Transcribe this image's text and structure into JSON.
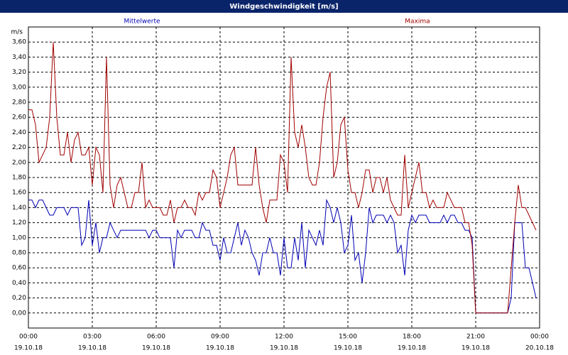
{
  "chart_data": {
    "type": "line",
    "title": "Windgeschwindigkeit [m/s]",
    "y_unit": "m/s",
    "xlim": [
      0,
      1440
    ],
    "xticks": [
      {
        "value": 0,
        "label": "00:00"
      },
      {
        "value": 180,
        "label": "03:00"
      },
      {
        "value": 360,
        "label": "06:00"
      },
      {
        "value": 540,
        "label": "09:00"
      },
      {
        "value": 720,
        "label": "12:00"
      },
      {
        "value": 900,
        "label": "15:00"
      },
      {
        "value": 1080,
        "label": "18:00"
      },
      {
        "value": 1260,
        "label": "21:00"
      },
      {
        "value": 1440,
        "label": "00:00"
      }
    ],
    "xtick_dates": [
      "19.10.18",
      "19.10.18",
      "19.10.18",
      "19.10.18",
      "19.10.18",
      "19.10.18",
      "19.10.18",
      "19.10.18",
      "20.10.18"
    ],
    "ylim": [
      -0.2,
      3.8
    ],
    "yticks": [
      {
        "value": 0,
        "label": "0,00"
      },
      {
        "value": 0.2,
        "label": "0,20"
      },
      {
        "value": 0.4,
        "label": "0,40"
      },
      {
        "value": 0.6,
        "label": "0,60"
      },
      {
        "value": 0.8,
        "label": "0,80"
      },
      {
        "value": 1,
        "label": "1,00"
      },
      {
        "value": 1.2,
        "label": "1,20"
      },
      {
        "value": 1.4,
        "label": "1,40"
      },
      {
        "value": 1.6,
        "label": "1,60"
      },
      {
        "value": 1.8,
        "label": "1,80"
      },
      {
        "value": 2,
        "label": "2,00"
      },
      {
        "value": 2.2,
        "label": "2,20"
      },
      {
        "value": 2.4,
        "label": "2,40"
      },
      {
        "value": 2.6,
        "label": "2,60"
      },
      {
        "value": 2.8,
        "label": "2,80"
      },
      {
        "value": 3,
        "label": "3,00"
      },
      {
        "value": 3.2,
        "label": "3,20"
      },
      {
        "value": 3.4,
        "label": "3,40"
      },
      {
        "value": 3.6,
        "label": "3,60"
      }
    ],
    "grid": true,
    "x": [
      0,
      10,
      20,
      30,
      40,
      50,
      60,
      70,
      80,
      90,
      100,
      110,
      120,
      130,
      140,
      150,
      160,
      170,
      180,
      190,
      200,
      210,
      220,
      230,
      240,
      250,
      260,
      270,
      280,
      290,
      300,
      310,
      320,
      330,
      340,
      350,
      360,
      370,
      380,
      390,
      400,
      410,
      420,
      430,
      440,
      450,
      460,
      470,
      480,
      490,
      500,
      510,
      520,
      530,
      540,
      550,
      560,
      570,
      580,
      590,
      600,
      610,
      620,
      630,
      640,
      650,
      660,
      670,
      680,
      690,
      700,
      710,
      720,
      730,
      740,
      750,
      760,
      770,
      780,
      790,
      800,
      810,
      820,
      830,
      840,
      850,
      860,
      870,
      880,
      890,
      900,
      910,
      920,
      930,
      940,
      950,
      960,
      970,
      980,
      990,
      1000,
      1010,
      1020,
      1030,
      1040,
      1050,
      1060,
      1070,
      1080,
      1090,
      1100,
      1110,
      1120,
      1130,
      1140,
      1150,
      1160,
      1170,
      1180,
      1190,
      1200,
      1210,
      1220,
      1230,
      1240,
      1250,
      1260,
      1270,
      1280,
      1290,
      1300,
      1310,
      1320,
      1330,
      1340,
      1350,
      1360,
      1370,
      1380,
      1390,
      1400,
      1410,
      1420,
      1430
    ],
    "series": [
      {
        "name": "Mittelwerte",
        "color": "#0000b4",
        "values": [
          1.5,
          1.5,
          1.4,
          1.5,
          1.5,
          1.4,
          1.3,
          1.3,
          1.4,
          1.4,
          1.4,
          1.3,
          1.4,
          1.4,
          1.4,
          0.9,
          1.0,
          1.5,
          0.9,
          1.2,
          0.8,
          1.0,
          1.0,
          1.2,
          1.1,
          1.0,
          1.1,
          1.1,
          1.1,
          1.1,
          1.1,
          1.1,
          1.1,
          1.1,
          1.0,
          1.1,
          1.1,
          1.0,
          1.0,
          1.0,
          1.0,
          0.6,
          1.1,
          1.0,
          1.1,
          1.1,
          1.1,
          1.0,
          1.0,
          1.2,
          1.1,
          1.1,
          0.9,
          0.9,
          0.7,
          1.0,
          0.8,
          0.8,
          1.0,
          1.2,
          0.9,
          1.1,
          1.0,
          0.8,
          0.7,
          0.5,
          0.8,
          0.8,
          1.0,
          0.8,
          0.8,
          0.5,
          1.0,
          0.6,
          0.6,
          1.0,
          0.7,
          1.2,
          0.6,
          1.1,
          1.0,
          0.9,
          1.1,
          0.9,
          1.5,
          1.4,
          1.2,
          1.4,
          1.2,
          0.8,
          0.9,
          1.3,
          0.7,
          0.8,
          0.4,
          0.8,
          1.4,
          1.2,
          1.3,
          1.3,
          1.3,
          1.2,
          1.3,
          1.2,
          0.8,
          0.9,
          0.5,
          1.1,
          1.3,
          1.2,
          1.3,
          1.3,
          1.3,
          1.2,
          1.2,
          1.2,
          1.2,
          1.3,
          1.2,
          1.3,
          1.3,
          1.2,
          1.2,
          1.1,
          1.1,
          1.0,
          0,
          0,
          0,
          0,
          0,
          0,
          0,
          0,
          0,
          0,
          0.2,
          1.2,
          1.2,
          1.2,
          0.6,
          0.6,
          0.4,
          0.2
        ]
      },
      {
        "name": "Maxima",
        "color": "#a00000",
        "values": [
          2.7,
          2.7,
          2.5,
          2.0,
          2.1,
          2.2,
          2.6,
          3.6,
          2.6,
          2.1,
          2.1,
          2.4,
          2.0,
          2.3,
          2.4,
          2.1,
          2.1,
          2.2,
          1.7,
          2.2,
          2.1,
          1.6,
          3.4,
          1.7,
          1.4,
          1.7,
          1.8,
          1.6,
          1.4,
          1.4,
          1.6,
          1.6,
          2.0,
          1.4,
          1.5,
          1.4,
          1.4,
          1.4,
          1.3,
          1.3,
          1.5,
          1.2,
          1.4,
          1.4,
          1.5,
          1.4,
          1.4,
          1.3,
          1.6,
          1.5,
          1.6,
          1.6,
          1.9,
          1.8,
          1.4,
          1.6,
          1.8,
          2.1,
          2.2,
          1.7,
          1.7,
          1.7,
          1.7,
          1.7,
          2.2,
          1.7,
          1.4,
          1.2,
          1.5,
          1.5,
          1.5,
          2.1,
          2.0,
          1.6,
          3.4,
          2.4,
          2.2,
          2.5,
          2.2,
          1.8,
          1.7,
          1.7,
          2.0,
          2.6,
          3.0,
          3.2,
          1.8,
          2.0,
          2.5,
          2.6,
          1.9,
          1.6,
          1.6,
          1.4,
          1.6,
          1.9,
          1.9,
          1.6,
          1.8,
          1.8,
          1.6,
          1.8,
          1.5,
          1.4,
          1.3,
          1.3,
          2.1,
          1.4,
          1.6,
          1.8,
          2.0,
          1.6,
          1.6,
          1.4,
          1.5,
          1.4,
          1.4,
          1.4,
          1.6,
          1.5,
          1.4,
          1.4,
          1.4,
          1.2,
          1.2,
          0.9,
          0,
          0,
          0,
          0,
          0,
          0,
          0,
          0,
          0,
          0,
          0.6,
          1.2,
          1.7,
          1.4,
          1.4,
          1.3,
          1.2,
          1.1
        ]
      }
    ]
  }
}
